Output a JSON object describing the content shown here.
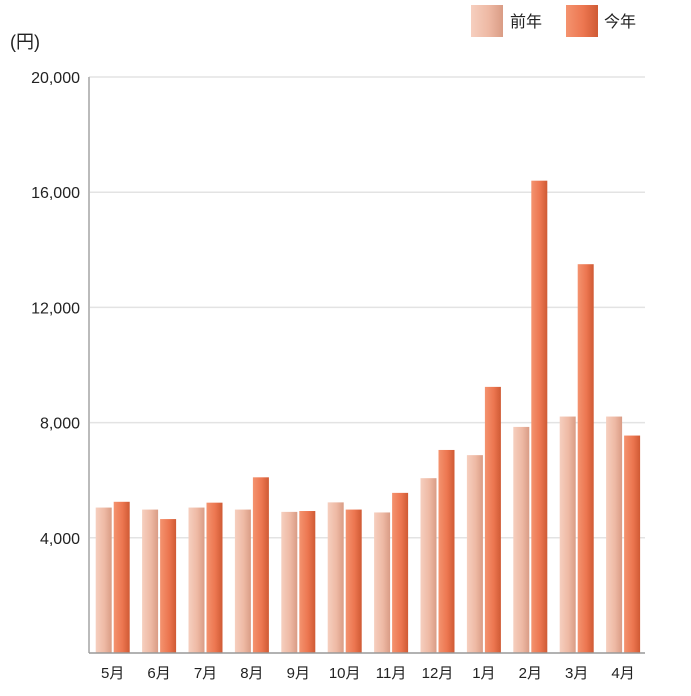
{
  "chart_data": {
    "type": "bar",
    "title": "",
    "unit_label": "(円)",
    "xlabel": "",
    "ylabel": "",
    "ylim": [
      0,
      20000
    ],
    "yticks": [
      4000,
      8000,
      12000,
      16000,
      20000
    ],
    "ytick_labels": [
      "4,000",
      "8,000",
      "12,000",
      "16,000",
      "20,000"
    ],
    "grid": true,
    "legend_position": "top-right",
    "categories": [
      "5月",
      "6月",
      "7月",
      "8月",
      "9月",
      "10月",
      "11月",
      "12月",
      "1月",
      "2月",
      "3月",
      "4月"
    ],
    "series": [
      {
        "name": "前年",
        "color": "#f0bba6",
        "color_dark": "#d89a82",
        "values": [
          5050,
          4980,
          5050,
          4980,
          4900,
          5230,
          4880,
          6070,
          6870,
          7850,
          8210,
          8210
        ]
      },
      {
        "name": "今年",
        "color": "#ef7a54",
        "color_dark": "#cf5a34",
        "values": [
          5250,
          4650,
          5220,
          6100,
          4930,
          4980,
          5560,
          7050,
          9240,
          16400,
          13500,
          7550
        ]
      }
    ]
  }
}
